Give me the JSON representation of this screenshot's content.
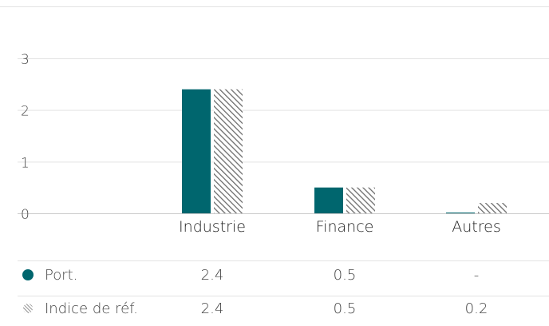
{
  "chart_data": {
    "type": "bar",
    "categories": [
      "",
      "Industrie",
      "Finance",
      "Autres"
    ],
    "series": [
      {
        "name": "Port.",
        "values": [
          null,
          2.4,
          0.5,
          0
        ],
        "color": "#00666e",
        "pattern": "solid",
        "icon": "filled-circle-icon"
      },
      {
        "name": "Indice de réf.",
        "values": [
          null,
          2.4,
          0.5,
          0.2
        ],
        "color": "#777777",
        "pattern": "hatched",
        "icon": "hatched-circle-icon"
      }
    ],
    "ylim": [
      0,
      3
    ],
    "yticks": [
      "0",
      "1",
      "2",
      "3"
    ],
    "grid": true,
    "table": [
      {
        "label": "Port.",
        "values": [
          "",
          "2.4",
          "0.5",
          "-"
        ]
      },
      {
        "label": "Indice de réf.",
        "values": [
          "",
          "2.4",
          "0.5",
          "0.2"
        ]
      }
    ]
  }
}
